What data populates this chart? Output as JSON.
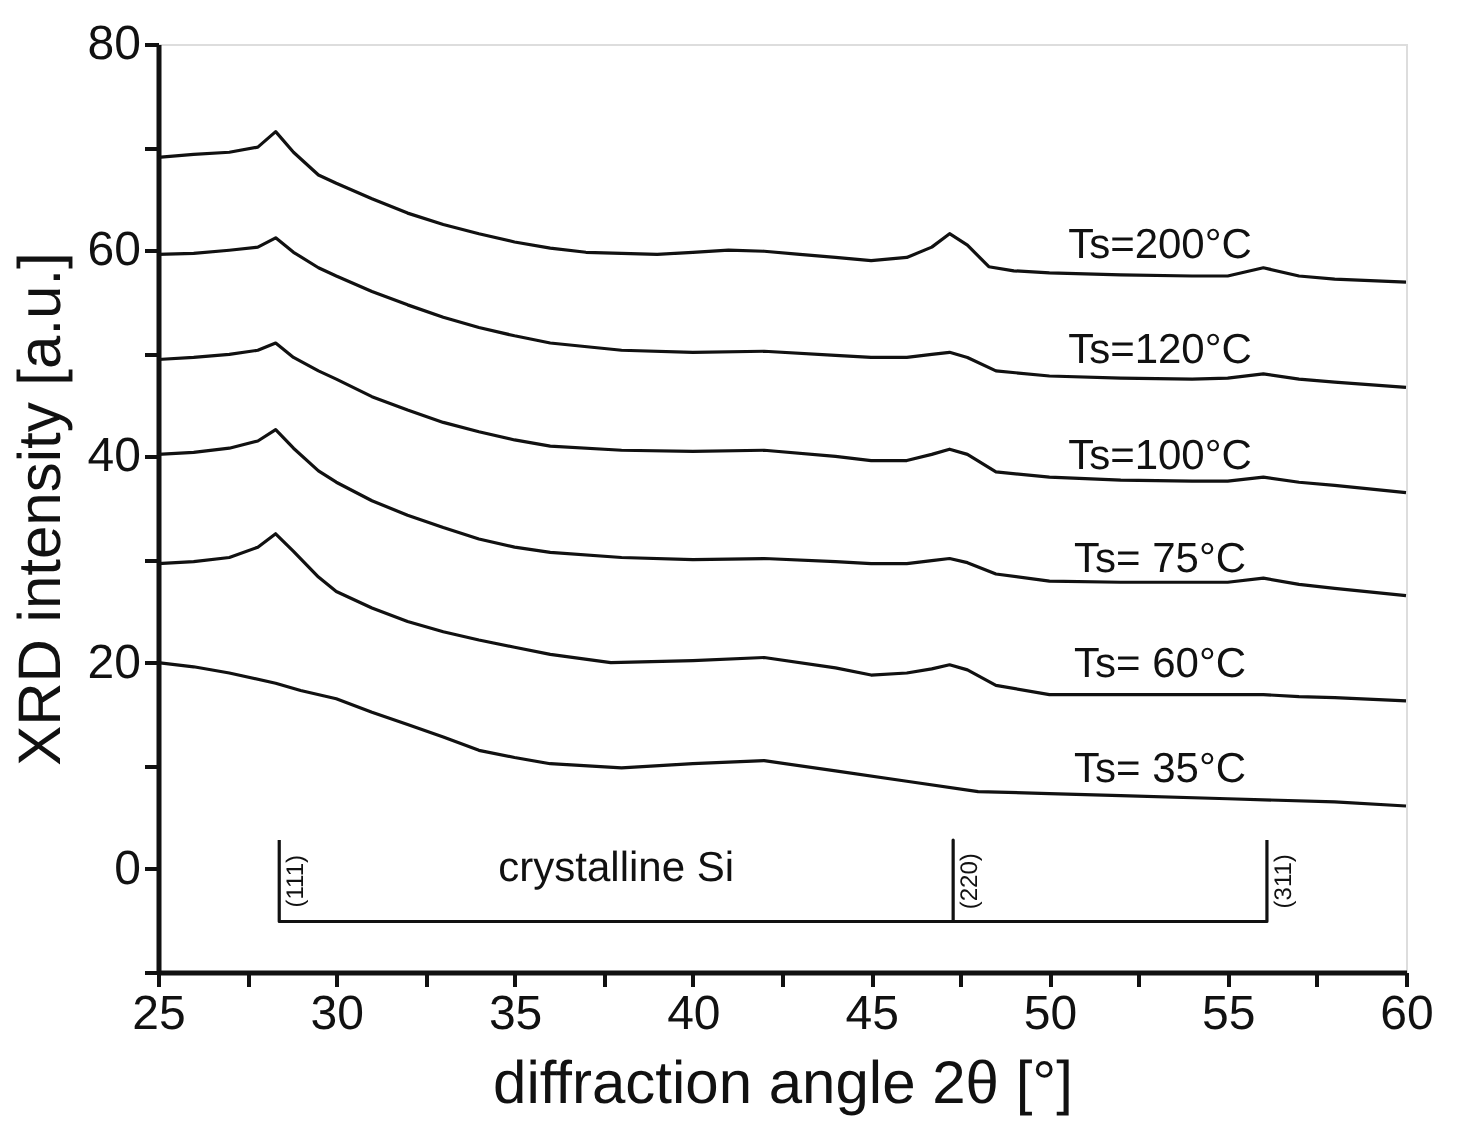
{
  "chart_data": {
    "type": "line",
    "xlabel": "diffraction angle 2θ [°]",
    "ylabel": "XRD intensity [a.u.]",
    "xlim": [
      25,
      60
    ],
    "ylim": [
      -10,
      80
    ],
    "xticks": [
      25,
      {
        "value": 27.5,
        "label": null
      },
      30,
      {
        "value": 32.5,
        "label": null
      },
      35,
      {
        "value": 37.5,
        "label": null
      },
      40,
      {
        "value": 42.5,
        "label": null
      },
      45,
      {
        "value": 47.5,
        "label": null
      },
      50,
      {
        "value": 52.5,
        "label": null
      },
      55,
      {
        "value": 57.5,
        "label": null
      },
      60
    ],
    "yticks": [
      {
        "value": -10,
        "label": null
      },
      0,
      {
        "value": 10,
        "label": null
      },
      20,
      {
        "value": 30,
        "label": null
      },
      40,
      {
        "value": 50,
        "label": null
      },
      60,
      {
        "value": 70,
        "label": null
      },
      80
    ],
    "grid": false,
    "legend": false,
    "marker": "none",
    "line_style": "solid",
    "series": [
      {
        "name": "Ts=200°C",
        "color": "#111111",
        "x": [
          25,
          26,
          27,
          27.8,
          28.3,
          28.8,
          29.5,
          30,
          31,
          32,
          33,
          34,
          35,
          36,
          37,
          38,
          39,
          40,
          41,
          42,
          43,
          44,
          45,
          46,
          46.7,
          47.2,
          47.7,
          48.3,
          49,
          50,
          52,
          54,
          55,
          56,
          57,
          58,
          60
        ],
        "values": [
          69,
          69.3,
          69.5,
          70,
          71.5,
          69.5,
          67.3,
          66.5,
          65,
          63.6,
          62.5,
          61.6,
          60.8,
          60.2,
          59.8,
          59.7,
          59.6,
          59.8,
          60,
          59.9,
          59.6,
          59.3,
          59,
          59.3,
          60.3,
          61.6,
          60.5,
          58.4,
          58,
          57.8,
          57.6,
          57.5,
          57.5,
          58.3,
          57.5,
          57.2,
          56.9
        ]
      },
      {
        "name": "Ts=120°C",
        "color": "#111111",
        "x": [
          25,
          26,
          27,
          27.8,
          28.3,
          28.8,
          29.5,
          30,
          31,
          32,
          33,
          34,
          35,
          36,
          38,
          40,
          42,
          44,
          45,
          46,
          46.7,
          47.2,
          47.7,
          48.5,
          50,
          52,
          54,
          55,
          56,
          57,
          58,
          60
        ],
        "values": [
          59.6,
          59.7,
          60,
          60.3,
          61.2,
          59.8,
          58.3,
          57.5,
          56,
          54.7,
          53.5,
          52.5,
          51.7,
          51,
          50.3,
          50.1,
          50.2,
          49.8,
          49.6,
          49.6,
          49.9,
          50.1,
          49.6,
          48.3,
          47.8,
          47.6,
          47.5,
          47.6,
          48,
          47.5,
          47.2,
          46.7
        ]
      },
      {
        "name": "Ts=100°C",
        "color": "#111111",
        "x": [
          25,
          26,
          27,
          27.8,
          28.3,
          28.8,
          29.5,
          30,
          31,
          32,
          33,
          34,
          35,
          36,
          38,
          40,
          42,
          44,
          45,
          46,
          46.7,
          47.2,
          47.7,
          48.5,
          50,
          52,
          54,
          55,
          56,
          57,
          58,
          60
        ],
        "values": [
          49.4,
          49.6,
          49.9,
          50.3,
          51,
          49.6,
          48.3,
          47.5,
          45.8,
          44.5,
          43.3,
          42.4,
          41.6,
          41,
          40.6,
          40.5,
          40.6,
          40,
          39.6,
          39.6,
          40.2,
          40.7,
          40.2,
          38.5,
          38,
          37.7,
          37.6,
          37.6,
          38,
          37.5,
          37.2,
          36.5
        ]
      },
      {
        "name": "Ts= 75°C",
        "color": "#111111",
        "x": [
          25,
          26,
          27,
          27.8,
          28.3,
          28.8,
          29.5,
          30,
          31,
          32,
          33,
          34,
          35,
          36,
          38,
          40,
          42,
          44,
          45,
          46,
          46.7,
          47.2,
          47.7,
          48.5,
          50,
          52,
          54,
          55,
          56,
          57,
          58,
          60
        ],
        "values": [
          40.2,
          40.4,
          40.8,
          41.5,
          42.6,
          40.8,
          38.6,
          37.5,
          35.7,
          34.3,
          33.1,
          32,
          31.2,
          30.7,
          30.2,
          30,
          30.1,
          29.8,
          29.6,
          29.6,
          29.9,
          30.1,
          29.7,
          28.6,
          27.9,
          27.8,
          27.8,
          27.8,
          28.2,
          27.6,
          27.2,
          26.5
        ]
      },
      {
        "name": "Ts= 60°C",
        "color": "#111111",
        "x": [
          25,
          26,
          27,
          27.8,
          28.3,
          28.8,
          29.5,
          30,
          31,
          32,
          33,
          34,
          35,
          36,
          37.7,
          40,
          42,
          44,
          45,
          46,
          46.7,
          47.2,
          47.7,
          48.5,
          50,
          52,
          54,
          55,
          56,
          57,
          58,
          60
        ],
        "values": [
          29.6,
          29.8,
          30.2,
          31.2,
          32.5,
          30.8,
          28.3,
          26.9,
          25.3,
          24,
          23,
          22.2,
          21.5,
          20.8,
          20,
          20.2,
          20.5,
          19.5,
          18.8,
          19,
          19.4,
          19.8,
          19.3,
          17.8,
          16.9,
          16.9,
          16.9,
          16.9,
          16.9,
          16.7,
          16.6,
          16.3
        ]
      },
      {
        "name": "Ts= 35°C",
        "color": "#111111",
        "x": [
          25,
          26,
          27,
          28.3,
          29,
          30,
          31,
          32,
          33,
          34,
          35,
          36,
          38,
          40,
          42,
          44,
          46,
          48,
          50,
          52,
          55,
          58,
          60
        ],
        "values": [
          20,
          19.6,
          19,
          18,
          17.3,
          16.5,
          15.2,
          14,
          12.8,
          11.5,
          10.8,
          10.2,
          9.8,
          10.2,
          10.5,
          9.5,
          8.5,
          7.5,
          7.3,
          7.1,
          6.8,
          6.5,
          6.1
        ]
      },
      {
        "color": "#111111",
        "x": [
          28.4,
          28.4,
          47.3,
          47.3,
          47.3,
          56.1,
          56.1
        ],
        "values": [
          2.8,
          -5.1,
          -5.1,
          2.8,
          -5.1,
          -5.1,
          2.8
        ]
      }
    ],
    "annotations": [
      {
        "text": "crystalline Si",
        "x": 37.85,
        "y": -5.1
      },
      {
        "text": "(111)",
        "x": 28.4,
        "y": -1.2
      },
      {
        "text": "(220)",
        "x": 47.3,
        "y": -1.2
      },
      {
        "text": "(311)",
        "x": 56.1,
        "y": -1.2
      }
    ]
  }
}
